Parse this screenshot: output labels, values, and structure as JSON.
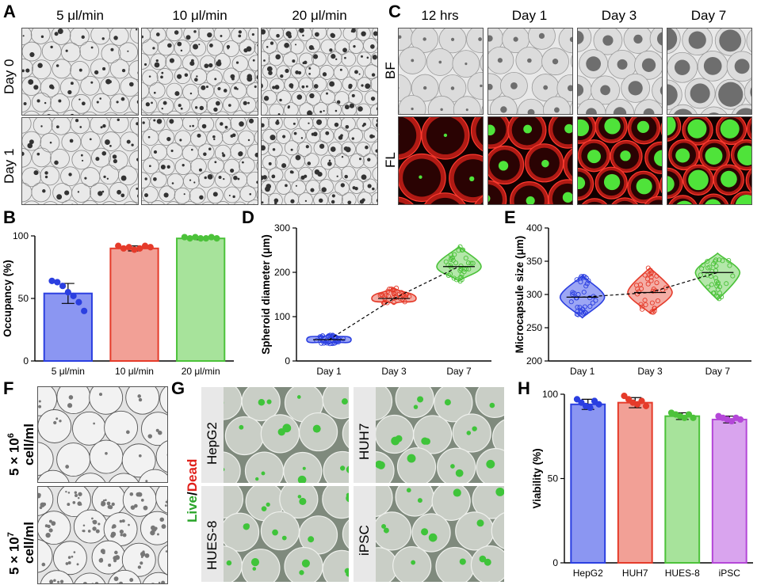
{
  "panel_labels": {
    "a": "A",
    "b": "B",
    "c": "C",
    "d": "D",
    "e": "E",
    "f": "F",
    "g": "G",
    "h": "H"
  },
  "panel_a": {
    "columns": [
      "5 μl/min",
      "10 μl/min",
      "20 μl/min"
    ],
    "rows": [
      "Day 0",
      "Day 1"
    ]
  },
  "panel_c": {
    "columns": [
      "12 hrs",
      "Day 1",
      "Day 3",
      "Day 7"
    ],
    "rows": [
      "BF",
      "FL"
    ]
  },
  "panel_f": {
    "rows": [
      {
        "label_top": "5 × 10",
        "sup": "6",
        "label_bottom": "cell/ml"
      },
      {
        "label_top": "5 × 10",
        "sup": "7",
        "label_bottom": "cell/ml"
      }
    ]
  },
  "panel_g": {
    "side_label_live": "Live",
    "side_label_sep": "/",
    "side_label_dead": "Dead",
    "tiles": [
      "HepG2",
      "HUH7",
      "HUES-8",
      "iPSC"
    ]
  },
  "colors": {
    "blue": "#2b3fe0",
    "blue_fill": "#8b96f2",
    "red": "#e53b2a",
    "red_fill": "#f2a096",
    "green": "#4cc23a",
    "green_fill": "#a7e39b",
    "purple": "#b447d8",
    "purple_fill": "#d9a4ee",
    "live": "#2aa52a",
    "dead": "#e0201a"
  },
  "chart_data": [
    {
      "id": "B",
      "type": "bar",
      "categories": [
        "5 μl/min",
        "10 μl/min",
        "20 μl/min"
      ],
      "values": [
        54,
        90,
        98
      ],
      "errors": [
        8,
        2,
        1
      ],
      "points": [
        [
          64,
          63,
          60,
          55,
          52,
          47,
          40
        ],
        [
          92,
          90,
          91,
          89,
          90,
          92,
          91
        ],
        [
          99,
          98,
          99,
          98,
          98,
          99,
          98
        ]
      ],
      "title": "",
      "xlabel": "",
      "ylabel": "Occupancy (%)",
      "ylim": [
        0,
        100
      ],
      "yticks": [
        0,
        50,
        100
      ]
    },
    {
      "id": "D",
      "type": "scatter",
      "categories": [
        "Day 1",
        "Day 3",
        "Day 7"
      ],
      "values": [
        48,
        141,
        213
      ],
      "spread": [
        [
          38,
          60
        ],
        [
          128,
          165
        ],
        [
          180,
          258
        ]
      ],
      "title": "",
      "xlabel": "",
      "ylabel": "Spheroid diameter (μm)",
      "ylim": [
        0,
        300
      ],
      "yticks": [
        0,
        100,
        200,
        300
      ]
    },
    {
      "id": "E",
      "type": "scatter",
      "categories": [
        "Day 1",
        "Day 3",
        "Day 7"
      ],
      "values": [
        296,
        303,
        333
      ],
      "spread": [
        [
          265,
          328
        ],
        [
          272,
          340
        ],
        [
          292,
          362
        ]
      ],
      "title": "",
      "xlabel": "",
      "ylabel": "Microcapsule size (μm)",
      "ylim": [
        200,
        400
      ],
      "yticks": [
        200,
        250,
        300,
        350,
        400
      ]
    },
    {
      "id": "H",
      "type": "bar",
      "categories": [
        "HepG2",
        "HUH7",
        "HUES-8",
        "iPSC"
      ],
      "values": [
        94,
        95,
        87,
        85
      ],
      "errors": [
        3,
        3,
        2,
        2
      ],
      "points": [
        [
          97,
          95,
          93,
          92,
          96,
          94
        ],
        [
          99,
          97,
          95,
          94,
          96,
          93
        ],
        [
          89,
          88,
          87,
          86,
          88,
          86
        ],
        [
          87,
          86,
          85,
          84,
          86,
          85
        ]
      ],
      "title": "",
      "xlabel": "",
      "ylabel": "Viability (%)",
      "ylim": [
        0,
        100
      ],
      "yticks": [
        0,
        50,
        100
      ]
    }
  ]
}
